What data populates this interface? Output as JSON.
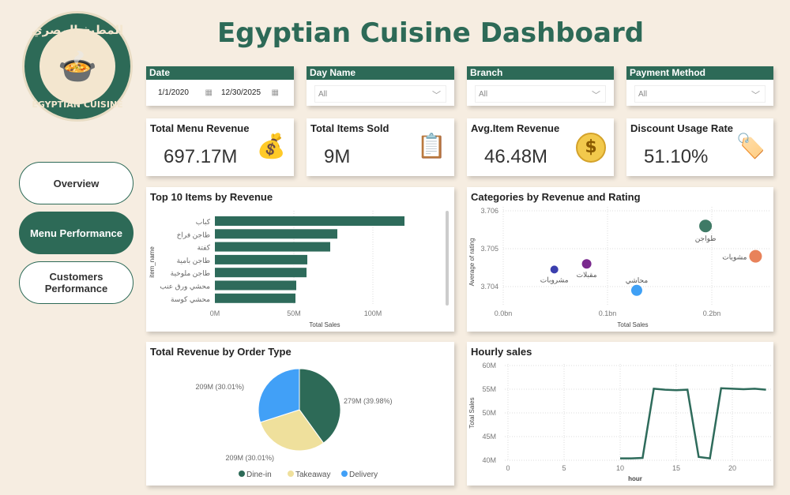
{
  "logo": {
    "arabic": "المطبخ المصري",
    "english": "EGYPTIAN CUISINE"
  },
  "title": "Egyptian Cuisine Dashboard",
  "nav": [
    {
      "label": "Overview"
    },
    {
      "label": "Menu Performance"
    },
    {
      "label": "Customers Performance"
    }
  ],
  "slicers": {
    "date": {
      "label": "Date",
      "start": "1/1/2020",
      "end": "12/30/2025"
    },
    "day": {
      "label": "Day Name",
      "value": "All"
    },
    "branch": {
      "label": "Branch",
      "value": "All"
    },
    "payment": {
      "label": "Payment Method",
      "value": "All"
    }
  },
  "kpis": [
    {
      "title": "Total Menu Revenue",
      "value": "697.17M",
      "icon": "coins-growth-icon"
    },
    {
      "title": "Total Items Sold",
      "value": "9M",
      "icon": "clipboard-icon"
    },
    {
      "title": "Avg.Item Revenue",
      "value": "46.48M",
      "icon": "dollar-coin-icon"
    },
    {
      "title": "Discount Usage Rate",
      "value": "51.10%",
      "icon": "discount-tag-icon"
    }
  ],
  "colors": {
    "accent": "#2d6a57",
    "bg": "#f6ede1"
  },
  "chart_data": [
    {
      "type": "bar",
      "title": "Top 10 Items by Revenue",
      "xlabel": "Total Sales",
      "ylabel": "item_name",
      "categories": [
        "كباب",
        "طاجن فراخ",
        "كفتة",
        "طاجن بامية",
        "طاجن ملوخية",
        "محشي ورق عنب",
        "محشي كوسة"
      ],
      "values": [
        120,
        77.5,
        73,
        58.5,
        58,
        51.5,
        51
      ],
      "unit": "M",
      "xticks": [
        "0M",
        "50M",
        "100M"
      ],
      "xlim": [
        0,
        135
      ]
    },
    {
      "type": "scatter",
      "title": "Categories by Revenue and Rating",
      "xlabel": "Total Sales",
      "ylabel": "Average of rating",
      "xticks": [
        "0.0bn",
        "0.1bn",
        "0.2bn"
      ],
      "yticks": [
        "3.706",
        "3.705",
        "3.704"
      ],
      "xlim": [
        0,
        0.25
      ],
      "ylim": [
        3.7036,
        3.7062
      ],
      "points": [
        {
          "label": "طواجن",
          "x": 0.194,
          "y": 3.7056,
          "color": "#3f7a66"
        },
        {
          "label": "مشويات",
          "x": 0.242,
          "y": 3.7048,
          "color": "#e8825a"
        },
        {
          "label": "مقبلات",
          "x": 0.08,
          "y": 3.7046,
          "color": "#7a2a8e"
        },
        {
          "label": "مشروبات",
          "x": 0.049,
          "y": 3.70445,
          "color": "#3b3fae"
        },
        {
          "label": "محاشي",
          "x": 0.128,
          "y": 3.7039,
          "color": "#3fa0f5"
        }
      ]
    },
    {
      "type": "pie",
      "title": "Total Revenue by Order Type",
      "slices": [
        {
          "name": "Dine-in",
          "value": 279,
          "label": "279M (39.98%)",
          "pct": 39.98,
          "color": "#2d6a57"
        },
        {
          "name": "Takeaway",
          "value": 209,
          "label": "209M (30.01%)",
          "pct": 30.01,
          "color": "#efe09c"
        },
        {
          "name": "Delivery",
          "value": 209,
          "label": "209M (30.01%)",
          "pct": 30.01,
          "color": "#41a0f7"
        }
      ]
    },
    {
      "type": "line",
      "title": "Hourly sales",
      "xlabel": "hour",
      "ylabel": "Total Sales",
      "xticks": [
        "0",
        "5",
        "10",
        "15",
        "20"
      ],
      "yticks": [
        "60M",
        "55M",
        "50M",
        "45M",
        "40M"
      ],
      "xlim": [
        0,
        23.5
      ],
      "ylim": [
        40,
        60
      ],
      "x": [
        10,
        11,
        12,
        13,
        14,
        15,
        16,
        17,
        18,
        19,
        20,
        21,
        22,
        23
      ],
      "y": [
        40.4,
        40.4,
        40.5,
        55.1,
        54.9,
        54.8,
        54.9,
        40.7,
        40.4,
        55.2,
        55.1,
        55.0,
        55.1,
        54.9
      ]
    }
  ]
}
